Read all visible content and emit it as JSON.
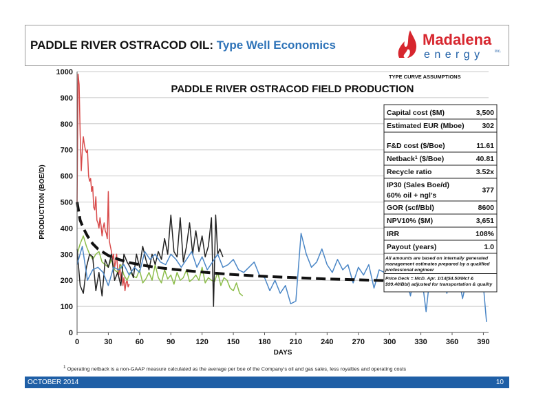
{
  "header": {
    "title_main": "PADDLE RIVER OSTRACOD OIL:",
    "title_sub": "Type Well Economics",
    "logo_line1": "Madalena",
    "logo_line2": "e n e r g y",
    "logo_suffix": "inc."
  },
  "colors": {
    "footer": "#1f5fa6",
    "title_accent": "#2e73b8",
    "logo_red": "#d7262e",
    "logo_blue": "#1f5fa6"
  },
  "chart_data": {
    "type": "line",
    "title": "PADDLE RIVER OSTRACOD FIELD PRODUCTION",
    "xlabel": "DAYS",
    "ylabel": "PRODUCTION (BOE/D)",
    "xlim": [
      0,
      395
    ],
    "ylim": [
      0,
      1000
    ],
    "xticks": [
      0,
      30,
      60,
      90,
      120,
      150,
      180,
      210,
      240,
      270,
      300,
      330,
      360,
      390
    ],
    "yticks": [
      0,
      100,
      200,
      300,
      400,
      500,
      600,
      700,
      800,
      900,
      1000
    ],
    "grid": true,
    "series": [
      {
        "color": "#d84a4a",
        "x": [
          0,
          1,
          2,
          3,
          4,
          5,
          6,
          7,
          8,
          9,
          10,
          11,
          12,
          13,
          14,
          15,
          16,
          17,
          18,
          19,
          20,
          21,
          22,
          23,
          24,
          25,
          26,
          27,
          28,
          29,
          30,
          31,
          32,
          33,
          34,
          35,
          36,
          37,
          38,
          39,
          40,
          41,
          42,
          43,
          44,
          45,
          46,
          47,
          48,
          49,
          50
        ],
        "y": [
          500,
          990,
          950,
          760,
          620,
          700,
          750,
          720,
          700,
          690,
          700,
          600,
          580,
          590,
          540,
          560,
          480,
          470,
          520,
          430,
          420,
          400,
          440,
          410,
          370,
          400,
          420,
          390,
          380,
          360,
          540,
          350,
          330,
          310,
          280,
          300,
          250,
          270,
          300,
          240,
          220,
          260,
          200,
          230,
          180,
          210,
          160,
          190,
          200,
          175,
          185
        ]
      },
      {
        "color": "#8cbd4a",
        "x": [
          0,
          3,
          6,
          9,
          12,
          15,
          18,
          21,
          24,
          27,
          30,
          33,
          36,
          39,
          42,
          45,
          48,
          51,
          54,
          57,
          60,
          63,
          66,
          69,
          72,
          75,
          78,
          81,
          84,
          87,
          90,
          93,
          96,
          99,
          102,
          105,
          108,
          111,
          114,
          117,
          120,
          123,
          126,
          129,
          132,
          135,
          138,
          141,
          144,
          147,
          150,
          153,
          156,
          159
        ],
        "y": [
          300,
          340,
          370,
          330,
          300,
          280,
          300,
          310,
          270,
          260,
          250,
          280,
          240,
          230,
          260,
          220,
          200,
          230,
          215,
          210,
          240,
          190,
          205,
          230,
          200,
          260,
          210,
          190,
          240,
          205,
          220,
          185,
          230,
          200,
          210,
          240,
          195,
          205,
          220,
          200,
          250,
          190,
          210,
          200,
          195,
          230,
          180,
          210,
          200,
          170,
          160,
          190,
          150,
          140
        ]
      },
      {
        "color": "#222222",
        "x": [
          0,
          3,
          6,
          9,
          12,
          15,
          18,
          21,
          24,
          27,
          30,
          33,
          36,
          39,
          42,
          45,
          48,
          51,
          54,
          57,
          60,
          63,
          66,
          69,
          72,
          75,
          78,
          81,
          84,
          87,
          90,
          93,
          96,
          99,
          102,
          105,
          108,
          111,
          114,
          117,
          120,
          123,
          126,
          129,
          131,
          133,
          135,
          137,
          140
        ],
        "y": [
          320,
          180,
          150,
          250,
          300,
          290,
          160,
          230,
          140,
          280,
          250,
          300,
          200,
          230,
          180,
          300,
          270,
          250,
          210,
          300,
          250,
          330,
          280,
          240,
          300,
          260,
          310,
          280,
          360,
          300,
          450,
          310,
          290,
          440,
          270,
          330,
          420,
          300,
          390,
          310,
          370,
          290,
          330,
          440,
          100,
          450,
          300,
          320,
          290
        ]
      },
      {
        "color": "#4a86c6",
        "x": [
          0,
          5,
          10,
          15,
          20,
          25,
          30,
          35,
          40,
          45,
          50,
          55,
          60,
          65,
          70,
          75,
          80,
          85,
          90,
          95,
          100,
          105,
          110,
          115,
          120,
          125,
          130,
          135,
          140,
          145,
          150,
          155,
          160,
          165,
          170,
          175,
          180,
          185,
          190,
          195,
          200,
          205,
          210,
          215,
          220,
          225,
          230,
          235,
          240,
          245,
          250,
          255,
          260,
          265,
          270,
          275,
          280,
          285,
          290,
          295,
          300,
          305,
          310,
          315,
          320,
          325,
          330,
          335,
          340,
          345,
          350,
          355,
          360,
          365,
          370,
          375,
          380,
          385,
          390,
          393
        ],
        "y": [
          260,
          330,
          200,
          240,
          250,
          230,
          180,
          250,
          240,
          260,
          220,
          250,
          230,
          310,
          280,
          300,
          270,
          260,
          300,
          280,
          250,
          280,
          310,
          250,
          290,
          240,
          270,
          300,
          250,
          260,
          280,
          240,
          230,
          250,
          270,
          220,
          210,
          160,
          200,
          150,
          180,
          110,
          120,
          380,
          300,
          250,
          270,
          320,
          260,
          230,
          280,
          240,
          260,
          190,
          250,
          220,
          260,
          170,
          240,
          230,
          300,
          180,
          260,
          220,
          140,
          250,
          240,
          80,
          260,
          200,
          230,
          150,
          250,
          240,
          130,
          220,
          170,
          230,
          180,
          40
        ]
      },
      {
        "name_hidden": "",
        "color": "#111111",
        "dashed": true,
        "x": [
          0,
          3,
          6,
          10,
          15,
          20,
          30,
          40,
          50,
          60,
          75,
          90,
          110,
          130,
          150,
          180,
          210,
          240,
          270,
          300,
          330,
          360,
          393
        ],
        "y": [
          500,
          430,
          400,
          370,
          340,
          320,
          295,
          280,
          268,
          260,
          250,
          243,
          235,
          228,
          222,
          215,
          210,
          205,
          202,
          198,
          196,
          194,
          192
        ]
      }
    ]
  },
  "assumptions": {
    "heading": "TYPE CURVE ASSUMPTIONS",
    "rows": [
      {
        "label": "Capital cost ($M)",
        "value": "3,500"
      },
      {
        "label": "Estimated EUR (Mboe)",
        "value": "302"
      },
      {
        "label": "F&D cost ($/Boe)",
        "value": "11.61"
      },
      {
        "label": "Netback",
        "sup": "1",
        "label_after": " ($/Boe)",
        "value": "40.81"
      },
      {
        "label": "Recycle ratio",
        "value": "3.52x"
      },
      {
        "label": "IP30 (Sales Boe/d)",
        "label2": "60% oil + ngl’s",
        "value": "377"
      },
      {
        "label": "GOR (scf/Bbl)",
        "value": "8600"
      },
      {
        "label": "NPV10% ($M)",
        "value": "3,651"
      },
      {
        "label": "IRR",
        "value": "108%"
      },
      {
        "label": "Payout (years)",
        "value": "1.0"
      }
    ],
    "note1_lines": [
      "All amounts are based on internally generated",
      "management estimates prepared by a qualified",
      "professional engineer"
    ],
    "note2_lines": [
      "Price Deck = McD. Apr. 1/14($4.50/Mcf &",
      "$99.40/Bbl) adjusted for transportation & quality"
    ]
  },
  "footnote": {
    "sup": "1",
    "text": "Operating netback is a non-GAAP measure calculated as the average per boe of the Company’s oil and gas sales, less royalties and operating costs"
  },
  "footer": {
    "date": "OCTOBER 2014",
    "page": "10"
  }
}
